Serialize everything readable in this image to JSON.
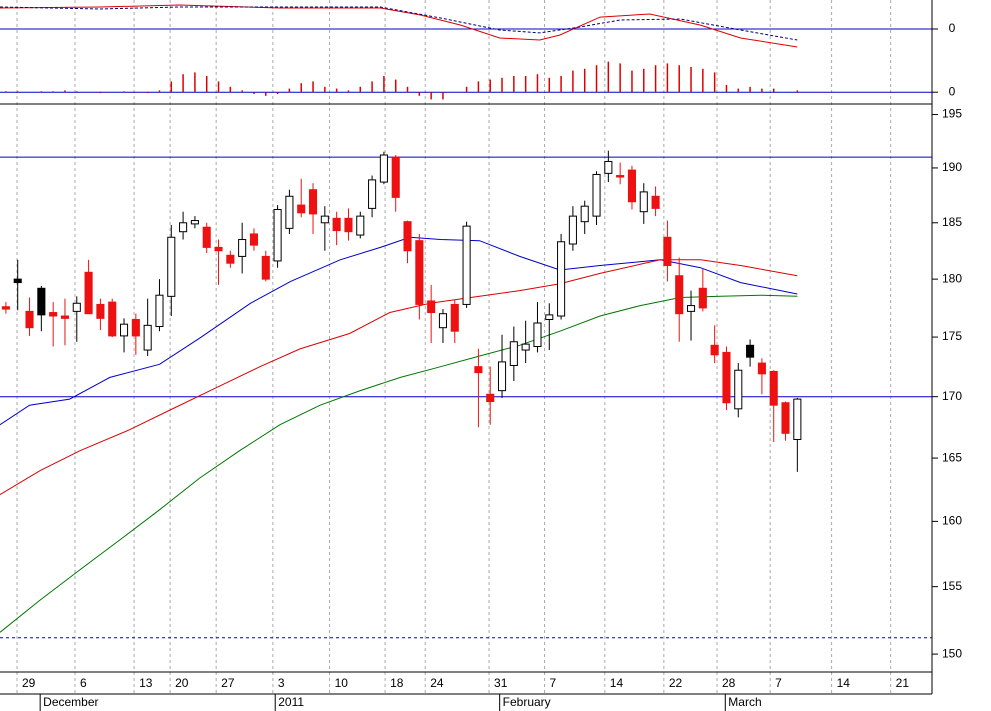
{
  "chart_data": [
    {
      "type": "candlestick",
      "x": [
        0,
        1,
        2,
        3,
        4,
        5,
        6,
        7,
        8,
        9,
        10,
        11,
        12,
        13,
        14,
        15,
        16,
        17,
        18,
        19,
        20,
        21,
        22,
        23,
        24,
        25,
        26,
        27,
        28,
        29,
        30,
        31,
        32,
        33,
        34,
        35,
        36,
        37,
        38,
        39,
        40,
        41,
        42,
        43,
        44,
        45,
        46,
        47,
        48,
        49,
        50,
        51,
        52,
        53,
        54,
        55,
        56,
        57,
        58,
        59,
        60,
        61,
        62,
        63,
        64,
        65,
        66,
        67
      ],
      "open": [
        177.6,
        180.0,
        177.2,
        179.2,
        177.1,
        176.8,
        177.2,
        180.6,
        177.8,
        178.0,
        175.1,
        176.5,
        173.9,
        175.9,
        178.5,
        184.2,
        184.9,
        184.6,
        182.8,
        182.1,
        182.0,
        184.0,
        182.0,
        181.6,
        184.5,
        186.6,
        188.0,
        185.0,
        185.4,
        185.4,
        183.9,
        186.3,
        188.7,
        191.0,
        185.1,
        183.4,
        178.1,
        175.8,
        177.8,
        177.8,
        172.5,
        170.2,
        170.5,
        172.6,
        173.9,
        174.2,
        176.5,
        176.8,
        183.1,
        185.1,
        185.6,
        189.5,
        189.3,
        189.8,
        186.0,
        187.4,
        183.7,
        180.3,
        177.2,
        179.2,
        174.3,
        173.7,
        169.0,
        174.3,
        172.8,
        172.1,
        169.5,
        166.5
      ],
      "high": [
        178.0,
        181.7,
        178.4,
        179.4,
        178.0,
        178.3,
        178.5,
        181.7,
        178.3,
        178.3,
        176.6,
        177.0,
        178.3,
        180.0,
        184.8,
        186.0,
        185.6,
        185.0,
        183.5,
        182.5,
        185.0,
        184.5,
        182.5,
        186.6,
        188.0,
        189.0,
        188.6,
        186.5,
        186.0,
        186.3,
        186.0,
        189.3,
        191.5,
        191.2,
        185.2,
        184.0,
        179.5,
        177.4,
        178.2,
        185.1,
        174.0,
        172.5,
        175.2,
        175.9,
        176.4,
        178.0,
        177.9,
        184.0,
        186.5,
        187.0,
        189.7,
        191.6,
        190.5,
        190.2,
        188.6,
        188.3,
        185.2,
        181.9,
        179.0,
        180.9,
        176.0,
        174.2,
        172.8,
        174.8,
        173.2,
        172.2,
        169.6,
        169.9
      ],
      "low": [
        177.0,
        177.3,
        175.1,
        175.5,
        174.2,
        174.3,
        174.6,
        177.0,
        175.6,
        175.0,
        173.7,
        173.5,
        173.4,
        175.5,
        176.8,
        183.5,
        184.5,
        182.3,
        179.5,
        181.0,
        180.5,
        182.5,
        179.8,
        181.0,
        184.0,
        185.5,
        184.0,
        182.5,
        183.0,
        183.4,
        183.6,
        185.5,
        188.5,
        186.0,
        181.4,
        176.5,
        174.5,
        174.5,
        174.5,
        177.5,
        167.5,
        167.7,
        169.9,
        171.3,
        172.8,
        173.7,
        173.9,
        176.5,
        182.5,
        184.0,
        184.8,
        188.7,
        188.5,
        186.2,
        184.9,
        185.6,
        179.8,
        174.6,
        174.7,
        177.2,
        172.8,
        168.9,
        168.3,
        172.5,
        170.2,
        166.3,
        166.4,
        163.9
      ],
      "close": [
        177.4,
        179.7,
        175.8,
        176.9,
        176.8,
        176.6,
        177.9,
        177.0,
        176.6,
        175.1,
        176.1,
        175.1,
        176.0,
        178.6,
        183.7,
        185.0,
        185.2,
        182.8,
        182.5,
        181.4,
        183.5,
        183.0,
        180.0,
        186.2,
        187.4,
        185.9,
        185.8,
        185.6,
        184.3,
        184.2,
        185.6,
        188.9,
        191.2,
        187.3,
        182.5,
        177.8,
        177.1,
        177.0,
        175.5,
        184.7,
        172.0,
        169.6,
        172.9,
        174.6,
        174.4,
        176.2,
        176.9,
        183.3,
        185.6,
        186.5,
        189.4,
        190.6,
        189.2,
        186.9,
        187.8,
        186.3,
        181.2,
        177.0,
        177.7,
        177.5,
        173.5,
        169.5,
        172.2,
        173.3,
        171.9,
        169.3,
        167.0,
        169.8
      ],
      "up_color": "#ffffff",
      "down_color": "#ee1111",
      "hold_color": "#000000",
      "series": [
        {
          "color": "#0000cc",
          "x": [
            -0.5,
            2.0,
            5.4,
            8.8,
            13.0,
            16.4,
            20.7,
            24.1,
            28.3,
            31.7,
            34.2,
            36.8,
            40.1,
            43.5,
            46.9,
            50.3,
            55.4,
            58.8,
            62.2,
            67
          ],
          "values": [
            167.7,
            169.3,
            169.8,
            171.6,
            172.7,
            174.9,
            177.9,
            179.8,
            181.7,
            182.8,
            183.7,
            183.5,
            183.4,
            182.0,
            180.8,
            181.2,
            181.7,
            181.0,
            179.7,
            178.7
          ]
        },
        {
          "color": "#dd0000",
          "x": [
            -0.5,
            2.9,
            6.3,
            10.5,
            13.9,
            17.3,
            21.5,
            24.9,
            29.1,
            32.5,
            35.9,
            40.1,
            43.5,
            46.9,
            50.3,
            53.7,
            55.4,
            58.8,
            62.2,
            67
          ],
          "values": [
            162.1,
            164.0,
            165.6,
            167.3,
            168.9,
            170.5,
            172.5,
            174.0,
            175.3,
            177.1,
            177.9,
            178.5,
            179.0,
            179.6,
            180.5,
            181.3,
            181.7,
            181.7,
            181.2,
            180.3
          ]
        },
        {
          "color": "#007700",
          "x": [
            -0.5,
            2.9,
            6.3,
            9.7,
            13.0,
            16.4,
            19.8,
            23.2,
            26.6,
            30.0,
            33.4,
            36.8,
            40.1,
            43.5,
            46.9,
            50.3,
            53.7,
            57.1,
            60.5,
            63.9,
            67
          ],
          "values": [
            151.6,
            154.0,
            156.3,
            158.6,
            160.9,
            163.4,
            165.6,
            167.7,
            169.3,
            170.5,
            171.6,
            172.5,
            173.4,
            174.3,
            175.5,
            176.8,
            177.7,
            178.4,
            178.5,
            178.6,
            178.5
          ]
        }
      ],
      "levels": [
        191.0,
        170.0
      ],
      "dashed_levels": [
        151.2
      ],
      "level_color": "#0000cc",
      "log_scale": true,
      "xlim": [
        -0.5,
        78.4
      ],
      "ylim": [
        148.7,
        196.0
      ],
      "yticks": [
        150,
        155,
        160,
        165,
        170,
        175,
        180,
        185,
        190,
        195
      ],
      "xticks": [
        {
          "value": 0.94,
          "label": "29"
        },
        {
          "value": 5.85,
          "label": "6"
        },
        {
          "value": 10.85,
          "label": "13"
        },
        {
          "value": 13.9,
          "label": "20"
        },
        {
          "value": 17.8,
          "label": "27"
        },
        {
          "value": 22.6,
          "label": "3"
        },
        {
          "value": 27.4,
          "label": "10"
        },
        {
          "value": 32.1,
          "label": "18"
        },
        {
          "value": 35.5,
          "label": "24"
        },
        {
          "value": 40.9,
          "label": "31"
        },
        {
          "value": 45.6,
          "label": "7"
        },
        {
          "value": 50.7,
          "label": "14"
        },
        {
          "value": 55.7,
          "label": "22"
        },
        {
          "value": 60.2,
          "label": "28"
        },
        {
          "value": 64.7,
          "label": "7"
        },
        {
          "value": 69.9,
          "label": "14"
        },
        {
          "value": 74.9,
          "label": "21"
        }
      ],
      "month_ticks": [
        {
          "value": 2.9,
          "label": "December"
        },
        {
          "value": 22.8,
          "label": "2011"
        },
        {
          "value": 41.8,
          "label": "February"
        },
        {
          "value": 60.9,
          "label": "March"
        }
      ]
    },
    {
      "type": "line",
      "xlim": [
        -0.5,
        78.4
      ],
      "ylim": [
        -2.5,
        2.5
      ],
      "yticks": [
        0
      ],
      "zero_color": "#0000cc",
      "series": [
        {
          "color": "#dd0000",
          "x": [
            -0.5,
            8.0,
            14.7,
            23.2,
            31.7,
            35.1,
            38.5,
            41.8,
            45.2,
            46.9,
            50.3,
            54.5,
            58.8,
            62.2,
            67
          ],
          "values": [
            1.81,
            1.9,
            2.07,
            1.81,
            1.81,
            1.21,
            0.34,
            -0.78,
            -0.95,
            -0.52,
            1.03,
            1.29,
            0.34,
            -0.78,
            -1.55
          ]
        },
        {
          "color": "#000088",
          "dashed": true,
          "x": [
            -0.5,
            8.0,
            14.7,
            23.2,
            31.7,
            36.8,
            41.8,
            45.2,
            48.6,
            52.0,
            57.1,
            62.2,
            67
          ],
          "values": [
            1.9,
            1.72,
            1.9,
            1.9,
            1.9,
            0.95,
            -0.09,
            -0.34,
            0.17,
            0.78,
            0.86,
            -0.09,
            -0.95
          ]
        }
      ]
    },
    {
      "type": "bar",
      "color": "#dd0000",
      "xlim": [
        -0.5,
        78.4
      ],
      "ylim": [
        -0.6,
        1.9
      ],
      "yticks": [
        0
      ],
      "zero_color": "#0000cc",
      "x": [
        0,
        1,
        2,
        3,
        4,
        5,
        6,
        7,
        8,
        9,
        10,
        11,
        12,
        13,
        14,
        15,
        16,
        17,
        18,
        19,
        20,
        21,
        22,
        23,
        24,
        25,
        26,
        27,
        28,
        29,
        30,
        31,
        32,
        33,
        34,
        35,
        36,
        37,
        38,
        39,
        40,
        41,
        42,
        43,
        44,
        45,
        46,
        47,
        48,
        49,
        50,
        51,
        52,
        53,
        54,
        55,
        56,
        57,
        58,
        59,
        60,
        61,
        62,
        63,
        64,
        65,
        66,
        67
      ],
      "values": [
        0.05,
        0.05,
        0.0,
        0.05,
        0.05,
        0.1,
        0.05,
        0.0,
        -0.05,
        0.0,
        0.05,
        0.0,
        -0.05,
        0.1,
        0.6,
        1.0,
        1.1,
        0.9,
        0.6,
        0.3,
        0.1,
        -0.1,
        -0.2,
        -0.1,
        0.2,
        0.5,
        0.6,
        0.3,
        0.2,
        0.1,
        0.3,
        0.6,
        0.9,
        0.7,
        0.3,
        -0.2,
        -0.4,
        -0.4,
        0.0,
        0.3,
        0.6,
        0.7,
        0.8,
        0.9,
        0.9,
        1.0,
        0.8,
        0.9,
        1.2,
        1.3,
        1.5,
        1.7,
        1.6,
        1.2,
        1.3,
        1.5,
        1.6,
        1.5,
        1.4,
        1.3,
        1.1,
        0.4,
        0.2,
        0.3,
        0.2,
        0.2,
        0.0,
        0.1
      ]
    }
  ]
}
